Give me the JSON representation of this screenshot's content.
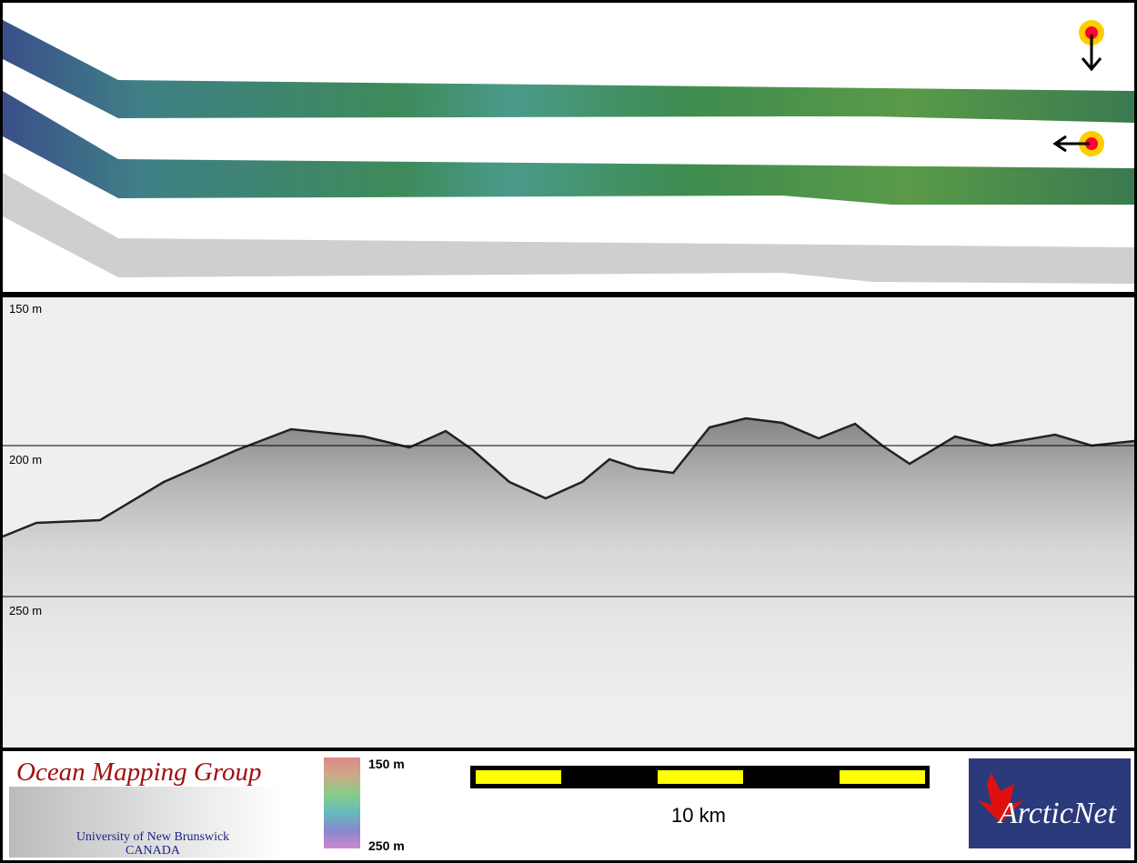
{
  "depth_labels": [
    "150 m",
    "200 m",
    "250 m"
  ],
  "logo": {
    "title": "Ocean Mapping Group",
    "university": "University of New Brunswick",
    "country": "CANADA"
  },
  "colorbar": {
    "top": "150 m",
    "bottom": "250 m"
  },
  "scale_bar": {
    "label": "10 km"
  },
  "partner_logo": {
    "name": "ArcticNet"
  }
}
